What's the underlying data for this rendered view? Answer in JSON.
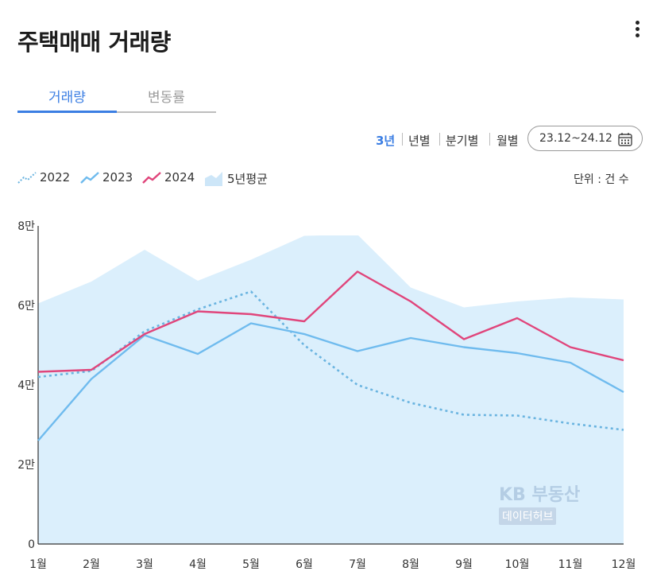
{
  "header": {
    "title": "주택매매 거래량"
  },
  "tabs": [
    {
      "label": "거래량"
    },
    {
      "label": "변동률"
    }
  ],
  "periods": [
    {
      "label": "3년"
    },
    {
      "label": "년별"
    },
    {
      "label": "분기별"
    },
    {
      "label": "월별"
    }
  ],
  "date_range": {
    "label": "23.12~24.12"
  },
  "legend": [
    {
      "label": "2022",
      "color": "#6ab4e0",
      "style": "dotted"
    },
    {
      "label": "2023",
      "color": "#6fbbee",
      "style": "solid"
    },
    {
      "label": "2024",
      "color": "#e0457b",
      "style": "solid"
    },
    {
      "label": "5년평균",
      "color": "#dbeffc",
      "style": "area"
    }
  ],
  "unit": "단위 : 건 수",
  "watermark": {
    "line1": "KB 부동산",
    "line2": "데이터허브"
  },
  "chart_data": {
    "type": "line",
    "categories": [
      "1월",
      "2월",
      "3월",
      "4월",
      "5월",
      "6월",
      "7월",
      "8월",
      "9월",
      "10월",
      "11월",
      "12월"
    ],
    "yticks": [
      "0",
      "2만",
      "4만",
      "6만",
      "8만"
    ],
    "ylim": [
      0,
      80000
    ],
    "series": [
      {
        "name": "5년평균",
        "kind": "area",
        "color": "#dbeffc",
        "values": [
          60500,
          66000,
          74000,
          66200,
          71500,
          77500,
          77800,
          64500,
          59500,
          61000,
          62000,
          61500
        ]
      },
      {
        "name": "2022",
        "kind": "dotted",
        "color": "#6ab4e0",
        "values": [
          42000,
          43500,
          53500,
          59000,
          63500,
          50000,
          40000,
          35500,
          32500,
          32300,
          30300,
          28700
        ]
      },
      {
        "name": "2023",
        "kind": "solid",
        "color": "#6fbbee",
        "values": [
          26000,
          41500,
          52500,
          47800,
          55500,
          52800,
          48500,
          51800,
          49500,
          48000,
          45600,
          38200
        ]
      },
      {
        "name": "2024",
        "kind": "solid",
        "color": "#e0457b",
        "values": [
          43300,
          43800,
          52800,
          58500,
          57800,
          56000,
          68500,
          61000,
          51500,
          56800,
          49500,
          46200
        ]
      }
    ]
  }
}
